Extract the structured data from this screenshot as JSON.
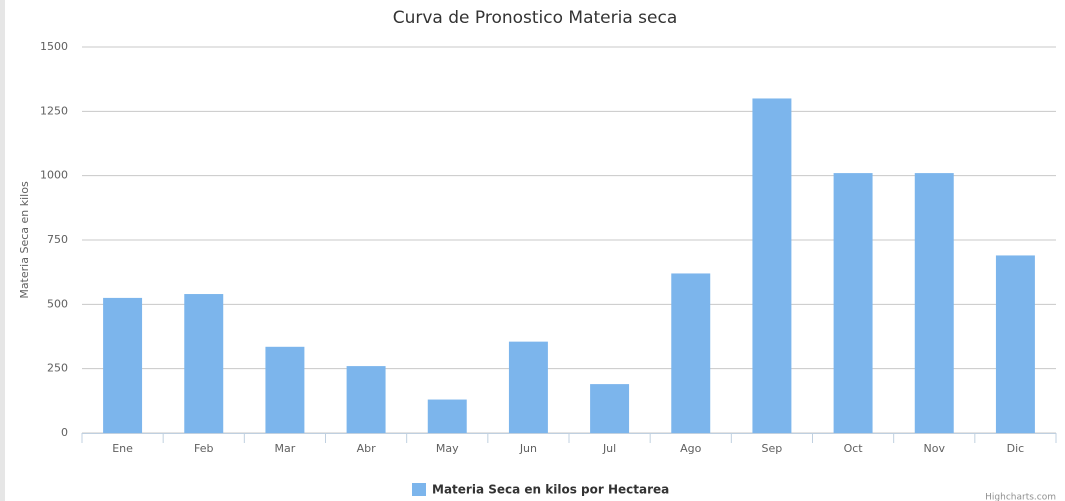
{
  "chart_data": {
    "type": "bar",
    "title": "Curva de Pronostico Materia seca",
    "y_label": "Materia Seca en kilos",
    "categories": [
      "Ene",
      "Feb",
      "Mar",
      "Abr",
      "May",
      "Jun",
      "Jul",
      "Ago",
      "Sep",
      "Oct",
      "Nov",
      "Dic"
    ],
    "series": [
      {
        "name": "Materia Seca en kilos por Hectarea",
        "color": "#7cb5ec",
        "values": [
          525,
          540,
          335,
          260,
          130,
          355,
          190,
          620,
          1300,
          1010,
          1010,
          690
        ]
      }
    ],
    "ylim": [
      0,
      1500
    ],
    "yticks": [
      0,
      250,
      500,
      750,
      1000,
      1250,
      1500
    ],
    "grid": true,
    "legend": "bottom",
    "credits": "Highcharts.com"
  }
}
